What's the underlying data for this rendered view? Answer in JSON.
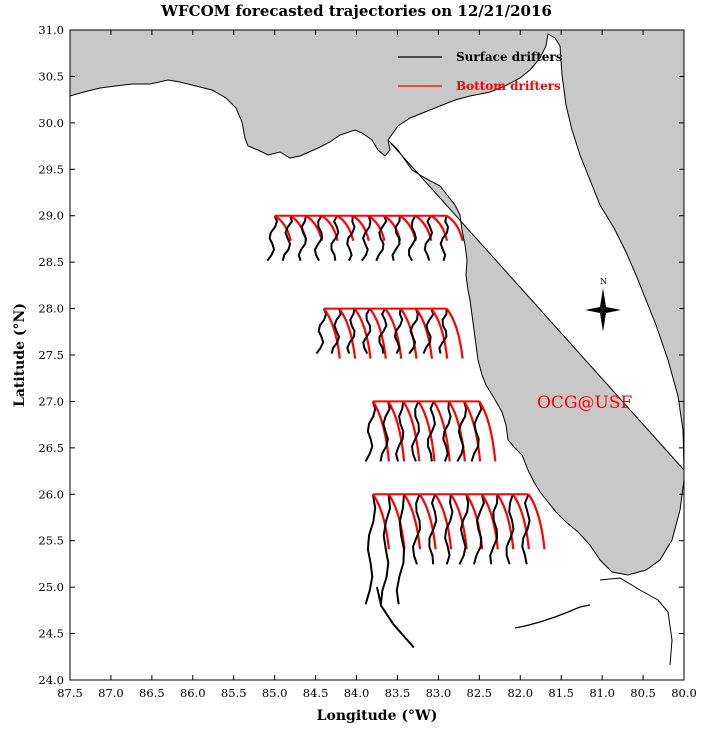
{
  "title": "WFCOM forecasted trajectories on 12/21/2016",
  "x_axis": {
    "label": "Longitude (°W)",
    "ticks": [
      "87.5",
      "87.0",
      "86.5",
      "86.0",
      "85.5",
      "85.0",
      "84.5",
      "84.0",
      "83.5",
      "83.0",
      "82.5",
      "82.0",
      "81.5",
      "81.0",
      "80.5",
      "80.0"
    ]
  },
  "y_axis": {
    "label": "Latitude (°N)",
    "ticks": [
      "24.0",
      "24.5",
      "25.0",
      "25.5",
      "26.0",
      "26.5",
      "27.0",
      "27.5",
      "28.0",
      "28.5",
      "29.0",
      "29.5",
      "30.0",
      "30.5",
      "31.0"
    ]
  },
  "legend": {
    "surface_label": "Surface drifters",
    "bottom_label": "Bottom drifters",
    "surface_color": "#000000",
    "bottom_color": "#ff0000"
  },
  "watermark": "OCG@USF",
  "compass_label": "N",
  "colors": {
    "land": "#c8c8c8",
    "water": "#ffffff",
    "surface": "#000000",
    "bottom": "#ff0000"
  },
  "map_extent": {
    "lon_west": -87.5,
    "lon_east": -80.0,
    "lat_south": 24.0,
    "lat_north": 31.0
  },
  "release_lines": [
    {
      "lat": 29.0,
      "lon_west": -85.0,
      "lon_east": -82.9
    },
    {
      "lat": 28.0,
      "lon_west": -84.4,
      "lon_east": -82.9
    },
    {
      "lat": 27.0,
      "lon_west": -83.8,
      "lon_east": -82.5
    },
    {
      "lat": 26.0,
      "lon_west": -83.8,
      "lon_east": -81.9
    }
  ]
}
